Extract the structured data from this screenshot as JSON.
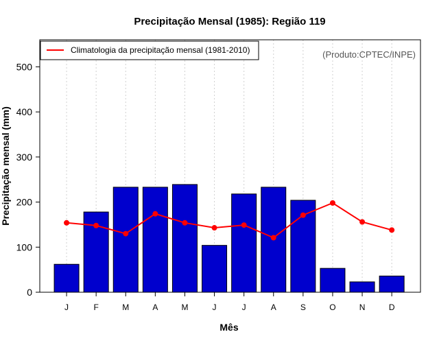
{
  "chart_data": {
    "type": "bar",
    "title": "Precipitação Mensal (1985): Região 119",
    "xlabel": "Mês",
    "ylabel": "Precipitação mensal (mm)",
    "categories": [
      "J",
      "F",
      "M",
      "A",
      "M",
      "J",
      "J",
      "A",
      "S",
      "O",
      "N",
      "D"
    ],
    "ylim": [
      0,
      560
    ],
    "yticks": [
      0,
      100,
      200,
      300,
      400,
      500
    ],
    "grid": "vertical-dotted",
    "series": [
      {
        "name": "Precipitação mensal (1985)",
        "type": "bar",
        "color": "#0000CD",
        "values": [
          62,
          178,
          233,
          233,
          239,
          104,
          218,
          233,
          204,
          53,
          23,
          36
        ]
      },
      {
        "name": "Climatologia da precipitação mensal (1981-2010)",
        "type": "line",
        "color": "#FF0000",
        "values": [
          154,
          148,
          130,
          174,
          154,
          143,
          149,
          121,
          171,
          198,
          156,
          138
        ]
      }
    ],
    "legend": {
      "position": "top-left",
      "entries": [
        "Climatologia da precipitação mensal (1981-2010)"
      ]
    },
    "annotation": "(Produto:CPTEC/INPE)"
  }
}
